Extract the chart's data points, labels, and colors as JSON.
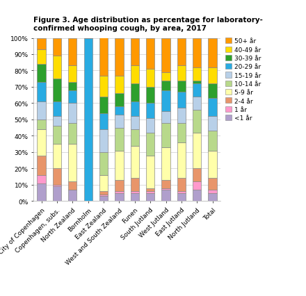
{
  "title": "Figure 3. Age distribution as percentage for laboratory-\nconfirmed whooping cough, by area, 2017",
  "categories": [
    "City of Copenhagen",
    "Copenhagen, subs.",
    "North Zealand",
    "Bornholm",
    "East Zealand",
    "West and South Zealand",
    "Funen",
    "South Jutland",
    "West Jutland",
    "East Jutland",
    "North Jutland",
    "Total"
  ],
  "age_groups": [
    "<1 år",
    "1 år",
    "2-4 år",
    "5-9 år",
    "10-14 år",
    "15-19 år",
    "20-29 år",
    "30-39 år",
    "40-49 år",
    "50+ år"
  ],
  "colors": [
    "#b09fcc",
    "#ff99cc",
    "#e8956a",
    "#ffffaa",
    "#b8d98b",
    "#b8d0e8",
    "#29abe2",
    "#2da02d",
    "#ffdd00",
    "#ff9900"
  ],
  "data": {
    "<1 år": [
      11,
      9,
      7,
      0,
      3,
      5,
      5,
      5,
      7,
      5,
      7,
      5
    ],
    "1 år": [
      5,
      1,
      0,
      0,
      1,
      1,
      1,
      1,
      1,
      1,
      5,
      2
    ],
    "2-4 år": [
      12,
      10,
      5,
      0,
      2,
      7,
      8,
      2,
      5,
      8,
      8,
      7
    ],
    "5-9 år": [
      16,
      15,
      23,
      0,
      10,
      18,
      20,
      20,
      20,
      22,
      22,
      17
    ],
    "10-14 år": [
      6,
      11,
      13,
      0,
      14,
      14,
      10,
      14,
      15,
      12,
      14,
      12
    ],
    "15-19 år": [
      11,
      6,
      12,
      0,
      14,
      8,
      8,
      9,
      7,
      9,
      8,
      9
    ],
    "20-29 år": [
      12,
      9,
      8,
      100,
      10,
      5,
      9,
      9,
      13,
      10,
      8,
      11
    ],
    "30-39 år": [
      11,
      14,
      5,
      0,
      10,
      8,
      11,
      10,
      6,
      7,
      2,
      9
    ],
    "40-49 år": [
      9,
      14,
      10,
      0,
      13,
      11,
      11,
      11,
      5,
      9,
      8,
      10
    ],
    "50+ år": [
      7,
      11,
      17,
      0,
      33,
      23,
      17,
      19,
      21,
      17,
      18,
      18
    ]
  },
  "ylim": [
    0,
    100
  ],
  "yticks": [
    0,
    10,
    20,
    30,
    40,
    50,
    60,
    70,
    80,
    90,
    100
  ],
  "yticklabels": [
    "0%",
    "10%",
    "20%",
    "30%",
    "40%",
    "50%",
    "60%",
    "70%",
    "80%",
    "90%",
    "100%"
  ],
  "title_fontsize": 7.5,
  "tick_fontsize": 6.5,
  "legend_fontsize": 6.5,
  "bar_width": 0.55,
  "edgecolor": "#888888",
  "edge_lw": 0.5
}
